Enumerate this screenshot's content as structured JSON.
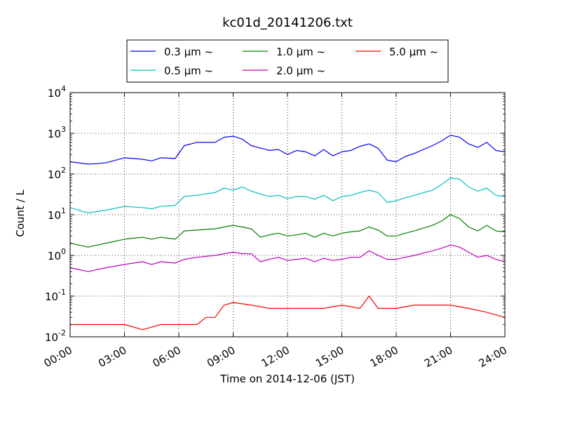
{
  "chart_data": {
    "type": "line",
    "title": "kc01d_20141206.txt",
    "xlabel": "Time on 2014-12-06 (JST)",
    "ylabel": "Count / L",
    "x_unit": "hours",
    "xlim": [
      0,
      24
    ],
    "ylim": [
      0.01,
      10000
    ],
    "y_scale": "log",
    "grid": true,
    "legend_position": "top-center",
    "x_ticks": [
      {
        "value": 0,
        "label": "00:00"
      },
      {
        "value": 3,
        "label": "03:00"
      },
      {
        "value": 6,
        "label": "06:00"
      },
      {
        "value": 9,
        "label": "09:00"
      },
      {
        "value": 12,
        "label": "12:00"
      },
      {
        "value": 15,
        "label": "15:00"
      },
      {
        "value": 18,
        "label": "18:00"
      },
      {
        "value": 21,
        "label": "21:00"
      },
      {
        "value": 24,
        "label": "24:00"
      }
    ],
    "y_ticks": [
      {
        "value": 0.01,
        "mantissa": "10",
        "exp": "-2"
      },
      {
        "value": 0.1,
        "mantissa": "10",
        "exp": "-1"
      },
      {
        "value": 1,
        "mantissa": "10",
        "exp": "0"
      },
      {
        "value": 10,
        "mantissa": "10",
        "exp": "1"
      },
      {
        "value": 100,
        "mantissa": "10",
        "exp": "2"
      },
      {
        "value": 1000,
        "mantissa": "10",
        "exp": "3"
      },
      {
        "value": 10000,
        "mantissa": "10",
        "exp": "4"
      }
    ],
    "series": [
      {
        "name": "0.3 μm ~",
        "color": "#0000ff",
        "points": [
          [
            0,
            200
          ],
          [
            1,
            175
          ],
          [
            1.5,
            180
          ],
          [
            2,
            190
          ],
          [
            3,
            250
          ],
          [
            4,
            230
          ],
          [
            4.5,
            210
          ],
          [
            5,
            250
          ],
          [
            5.8,
            240
          ],
          [
            6.3,
            500
          ],
          [
            7,
            600
          ],
          [
            8,
            600
          ],
          [
            8.5,
            800
          ],
          [
            9,
            850
          ],
          [
            9.5,
            720
          ],
          [
            10,
            500
          ],
          [
            11,
            380
          ],
          [
            11.5,
            400
          ],
          [
            12,
            300
          ],
          [
            12.5,
            380
          ],
          [
            13,
            350
          ],
          [
            13.5,
            280
          ],
          [
            14,
            400
          ],
          [
            14.5,
            280
          ],
          [
            15,
            350
          ],
          [
            15.5,
            380
          ],
          [
            16,
            480
          ],
          [
            16.5,
            550
          ],
          [
            17,
            430
          ],
          [
            17.5,
            220
          ],
          [
            18,
            200
          ],
          [
            18.5,
            270
          ],
          [
            19,
            320
          ],
          [
            20,
            500
          ],
          [
            20.5,
            650
          ],
          [
            21,
            900
          ],
          [
            21.5,
            800
          ],
          [
            22,
            550
          ],
          [
            22.5,
            450
          ],
          [
            23,
            600
          ],
          [
            23.5,
            380
          ],
          [
            24,
            350
          ]
        ]
      },
      {
        "name": "0.5 μm ~",
        "color": "#00bfbf",
        "points": [
          [
            0,
            15
          ],
          [
            1,
            11
          ],
          [
            1.5,
            12
          ],
          [
            2,
            13
          ],
          [
            3,
            16
          ],
          [
            4,
            15
          ],
          [
            4.5,
            14
          ],
          [
            5,
            16
          ],
          [
            5.8,
            17
          ],
          [
            6.3,
            28
          ],
          [
            7,
            30
          ],
          [
            8,
            35
          ],
          [
            8.5,
            45
          ],
          [
            9,
            40
          ],
          [
            9.5,
            48
          ],
          [
            10,
            38
          ],
          [
            11,
            28
          ],
          [
            11.5,
            30
          ],
          [
            12,
            25
          ],
          [
            12.5,
            28
          ],
          [
            13,
            28
          ],
          [
            13.5,
            24
          ],
          [
            14,
            30
          ],
          [
            14.5,
            22
          ],
          [
            15,
            28
          ],
          [
            15.5,
            30
          ],
          [
            16,
            35
          ],
          [
            16.5,
            40
          ],
          [
            17,
            35
          ],
          [
            17.5,
            20
          ],
          [
            18,
            22
          ],
          [
            18.5,
            26
          ],
          [
            19,
            30
          ],
          [
            20,
            40
          ],
          [
            20.5,
            55
          ],
          [
            21,
            80
          ],
          [
            21.5,
            75
          ],
          [
            22,
            48
          ],
          [
            22.5,
            38
          ],
          [
            23,
            45
          ],
          [
            23.5,
            30
          ],
          [
            24,
            28
          ]
        ]
      },
      {
        "name": "1.0 μm ~",
        "color": "#008000",
        "points": [
          [
            0,
            2
          ],
          [
            1,
            1.6
          ],
          [
            1.5,
            1.8
          ],
          [
            2,
            2
          ],
          [
            3,
            2.5
          ],
          [
            4,
            2.8
          ],
          [
            4.5,
            2.5
          ],
          [
            5,
            2.8
          ],
          [
            5.8,
            2.5
          ],
          [
            6.3,
            4
          ],
          [
            7,
            4.2
          ],
          [
            8,
            4.5
          ],
          [
            8.5,
            5
          ],
          [
            9,
            5.5
          ],
          [
            9.5,
            5
          ],
          [
            10,
            4.5
          ],
          [
            10.5,
            2.8
          ],
          [
            11,
            3.2
          ],
          [
            11.5,
            3.5
          ],
          [
            12,
            3
          ],
          [
            12.5,
            3.2
          ],
          [
            13,
            3.5
          ],
          [
            13.5,
            2.8
          ],
          [
            14,
            3.5
          ],
          [
            14.5,
            3
          ],
          [
            15,
            3.5
          ],
          [
            15.5,
            3.8
          ],
          [
            16,
            4
          ],
          [
            16.5,
            5
          ],
          [
            17,
            4.2
          ],
          [
            17.5,
            3
          ],
          [
            18,
            3
          ],
          [
            18.5,
            3.5
          ],
          [
            19,
            4
          ],
          [
            20,
            5.5
          ],
          [
            20.5,
            7
          ],
          [
            21,
            10
          ],
          [
            21.5,
            8
          ],
          [
            22,
            5
          ],
          [
            22.5,
            4
          ],
          [
            23,
            5.5
          ],
          [
            23.5,
            4
          ],
          [
            24,
            3.8
          ]
        ]
      },
      {
        "name": "2.0 μm ~",
        "color": "#bf00bf",
        "points": [
          [
            0,
            0.5
          ],
          [
            1,
            0.4
          ],
          [
            1.5,
            0.45
          ],
          [
            2,
            0.5
          ],
          [
            3,
            0.6
          ],
          [
            4,
            0.7
          ],
          [
            4.5,
            0.6
          ],
          [
            5,
            0.7
          ],
          [
            5.8,
            0.65
          ],
          [
            6.3,
            0.8
          ],
          [
            7,
            0.9
          ],
          [
            8,
            1
          ],
          [
            8.5,
            1.1
          ],
          [
            9,
            1.2
          ],
          [
            9.5,
            1.1
          ],
          [
            10,
            1.1
          ],
          [
            10.5,
            0.7
          ],
          [
            11,
            0.8
          ],
          [
            11.5,
            0.9
          ],
          [
            12,
            0.75
          ],
          [
            12.5,
            0.8
          ],
          [
            13,
            0.85
          ],
          [
            13.5,
            0.7
          ],
          [
            14,
            0.85
          ],
          [
            14.5,
            0.75
          ],
          [
            15,
            0.8
          ],
          [
            15.5,
            0.9
          ],
          [
            16,
            0.9
          ],
          [
            16.5,
            1.3
          ],
          [
            17,
            1
          ],
          [
            17.5,
            0.8
          ],
          [
            18,
            0.8
          ],
          [
            18.5,
            0.9
          ],
          [
            19,
            1
          ],
          [
            20,
            1.3
          ],
          [
            20.5,
            1.5
          ],
          [
            21,
            1.8
          ],
          [
            21.5,
            1.6
          ],
          [
            22,
            1.2
          ],
          [
            22.5,
            0.9
          ],
          [
            23,
            1
          ],
          [
            23.5,
            0.8
          ],
          [
            24,
            0.7
          ]
        ]
      },
      {
        "name": "5.0 μm ~",
        "color": "#ff0000",
        "points": [
          [
            0,
            0.02
          ],
          [
            1,
            0.02
          ],
          [
            2,
            0.02
          ],
          [
            3,
            0.02
          ],
          [
            4,
            0.015
          ],
          [
            5,
            0.02
          ],
          [
            6,
            0.02
          ],
          [
            7,
            0.02
          ],
          [
            7.5,
            0.03
          ],
          [
            8,
            0.03
          ],
          [
            8.5,
            0.06
          ],
          [
            9,
            0.07
          ],
          [
            10,
            0.06
          ],
          [
            11,
            0.05
          ],
          [
            12,
            0.05
          ],
          [
            13,
            0.05
          ],
          [
            14,
            0.05
          ],
          [
            15,
            0.06
          ],
          [
            16,
            0.05
          ],
          [
            16.5,
            0.1
          ],
          [
            17,
            0.05
          ],
          [
            18,
            0.05
          ],
          [
            19,
            0.06
          ],
          [
            20,
            0.06
          ],
          [
            21,
            0.06
          ],
          [
            22,
            0.05
          ],
          [
            23,
            0.04
          ],
          [
            24,
            0.03
          ]
        ]
      }
    ]
  }
}
